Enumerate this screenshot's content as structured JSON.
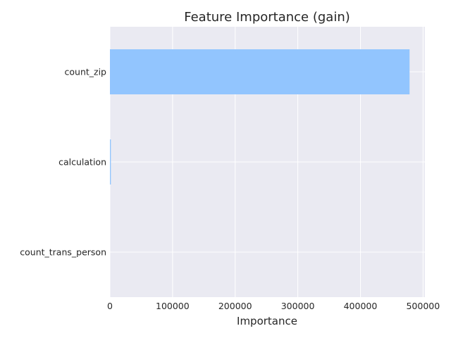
{
  "chart_data": {
    "type": "bar",
    "orientation": "horizontal",
    "title": "Feature Importance (gain)",
    "xlabel": "Importance",
    "ylabel": "",
    "categories": [
      "count_zip",
      "calculation",
      "count_trans_person"
    ],
    "values": [
      478500,
      1500,
      0
    ],
    "xlim": [
      0,
      503000
    ],
    "xticks": [
      0,
      100000,
      200000,
      300000,
      400000,
      500000
    ],
    "grid": true,
    "bar_color": "#92c5fe",
    "background_color": "#eaeaf2",
    "grid_color": "#ffffff"
  }
}
